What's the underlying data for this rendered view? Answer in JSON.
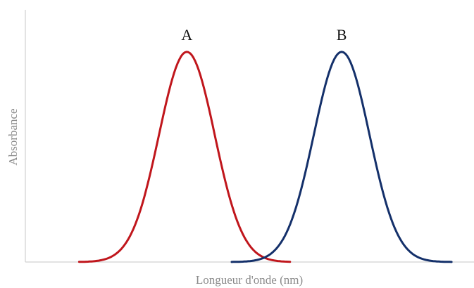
{
  "chart_data": {
    "type": "line",
    "title": "",
    "xlabel": "Longueur d'onde (nm)",
    "ylabel": "Absorbance",
    "grid": false,
    "legend": "none",
    "xlim": [
      0,
      100
    ],
    "ylim": [
      0,
      1.2
    ],
    "series": [
      {
        "name": "A",
        "color": "#c0161c",
        "center": 36,
        "sigma": 6.2,
        "peak": 1.0,
        "x_range": [
          12,
          59
        ]
      },
      {
        "name": "B",
        "color": "#14306a",
        "center": 70.5,
        "sigma": 6.2,
        "peak": 1.0,
        "x_range": [
          46,
          95
        ]
      }
    ]
  }
}
